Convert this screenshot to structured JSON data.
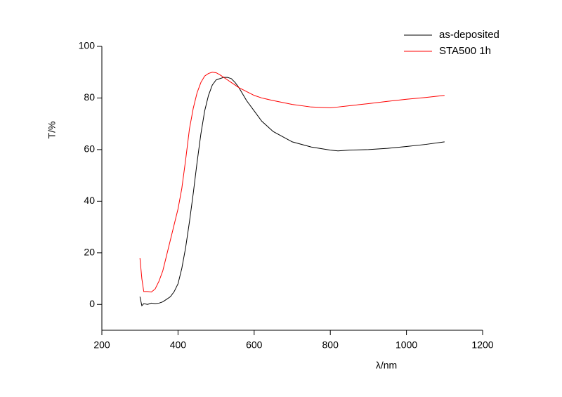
{
  "chart_data": {
    "type": "line",
    "xlabel": "λ/nm",
    "ylabel": "T/%",
    "x": [
      300,
      305,
      310,
      320,
      330,
      340,
      350,
      360,
      370,
      380,
      390,
      400,
      410,
      420,
      430,
      440,
      450,
      460,
      470,
      480,
      490,
      500,
      510,
      520,
      530,
      540,
      550,
      560,
      580,
      600,
      620,
      650,
      700,
      750,
      800,
      820,
      850,
      900,
      950,
      1000,
      1050,
      1100
    ],
    "series": [
      {
        "name": "as-deposited",
        "color": "#000000",
        "values": [
          3,
          -0.5,
          0.3,
          0,
          0.5,
          0.3,
          0.5,
          1,
          2,
          3,
          5,
          8,
          14,
          22,
          32,
          43,
          55,
          66,
          75,
          81,
          85,
          87,
          87.5,
          88,
          88,
          87.5,
          86,
          84,
          79,
          75,
          71,
          67,
          63,
          61,
          59.8,
          59.5,
          59.8,
          60,
          60.5,
          61.2,
          62,
          63
        ]
      },
      {
        "name": "STA500 1h",
        "color": "#ff0000",
        "values": [
          18,
          10,
          5,
          5,
          4.8,
          6,
          9,
          13,
          19,
          25,
          31,
          37,
          45,
          56,
          68,
          76,
          82,
          86,
          88.5,
          89.5,
          90,
          89.8,
          89,
          88,
          87,
          86,
          85,
          84,
          82.5,
          81,
          80,
          79,
          77.5,
          76.5,
          76.2,
          76.5,
          77,
          77.8,
          78.7,
          79.5,
          80.2,
          81
        ]
      }
    ],
    "xlim": [
      200,
      1200
    ],
    "xticks": [
      200,
      400,
      600,
      800,
      1000,
      1200
    ],
    "ylim": [
      -10,
      100
    ],
    "yticks": [
      0,
      20,
      40,
      60,
      80,
      100
    ],
    "legend": "top-right",
    "grid": false
  }
}
